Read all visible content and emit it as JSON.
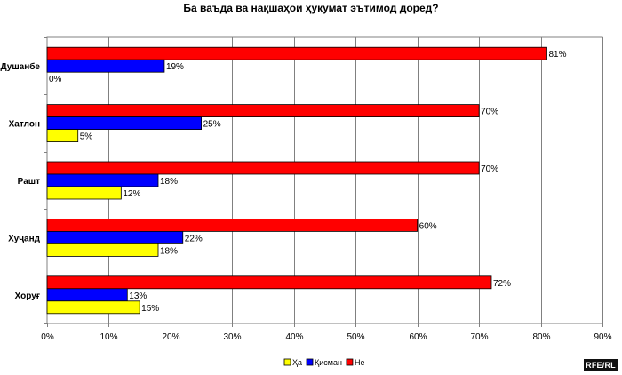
{
  "chart_data": {
    "type": "bar",
    "orientation": "horizontal",
    "title": "Ба ваъда ва нақшаҳои ҳукумат эътимод доред?",
    "xlabel": "",
    "ylabel": "",
    "categories": [
      "Душанбе",
      "Хатлон",
      "Рашт",
      "Хуҷанд",
      "Хоруғ"
    ],
    "series": [
      {
        "name": "Ҳа",
        "color": "#ffff00",
        "values": [
          0,
          5,
          12,
          18,
          15
        ]
      },
      {
        "name": "Қисман",
        "color": "#0000ff",
        "values": [
          19,
          25,
          18,
          22,
          13
        ]
      },
      {
        "name": "Не",
        "color": "#ff0000",
        "values": [
          81,
          70,
          70,
          60,
          72
        ]
      }
    ],
    "xlim": [
      0,
      90
    ],
    "xticks": [
      "0%",
      "10%",
      "20%",
      "30%",
      "40%",
      "50%",
      "60%",
      "70%",
      "80%",
      "90%"
    ],
    "value_suffix": "%",
    "grid": true,
    "legend_position": "bottom"
  },
  "branding": {
    "logo_text": "RFE/RL"
  }
}
